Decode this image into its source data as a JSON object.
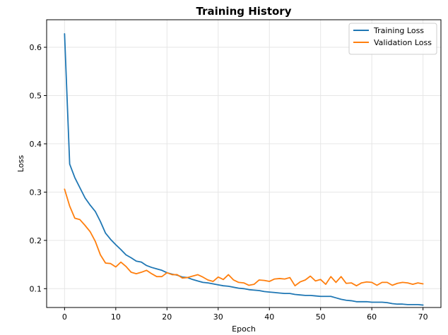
{
  "chart_data": {
    "type": "line",
    "title": "Training History",
    "xlabel": "Epoch",
    "ylabel": "Loss",
    "xlim": [
      -3.5,
      73.5
    ],
    "ylim": [
      0.061,
      0.657
    ],
    "xticks": [
      0,
      10,
      20,
      30,
      40,
      50,
      60,
      70
    ],
    "yticks": [
      0.1,
      0.2,
      0.3,
      0.4,
      0.5,
      0.6
    ],
    "xtick_labels": [
      "0",
      "10",
      "20",
      "30",
      "40",
      "50",
      "60",
      "70"
    ],
    "ytick_labels": [
      "0.1",
      "0.2",
      "0.3",
      "0.4",
      "0.5",
      "0.6"
    ],
    "grid": true,
    "legend_position": "top-right",
    "x": [
      0,
      1,
      2,
      3,
      4,
      5,
      6,
      7,
      8,
      9,
      10,
      11,
      12,
      13,
      14,
      15,
      16,
      17,
      18,
      19,
      20,
      21,
      22,
      23,
      24,
      25,
      26,
      27,
      28,
      29,
      30,
      31,
      32,
      33,
      34,
      35,
      36,
      37,
      38,
      39,
      40,
      41,
      42,
      43,
      44,
      45,
      46,
      47,
      48,
      49,
      50,
      51,
      52,
      53,
      54,
      55,
      56,
      57,
      58,
      59,
      60,
      61,
      62,
      63,
      64,
      65,
      66,
      67,
      68,
      69,
      70
    ],
    "series": [
      {
        "name": "Training Loss",
        "color": "#1f77b4",
        "values": [
          0.628,
          0.358,
          0.33,
          0.309,
          0.288,
          0.273,
          0.26,
          0.239,
          0.215,
          0.202,
          0.191,
          0.181,
          0.17,
          0.164,
          0.157,
          0.155,
          0.148,
          0.144,
          0.141,
          0.138,
          0.133,
          0.13,
          0.128,
          0.124,
          0.123,
          0.119,
          0.116,
          0.113,
          0.112,
          0.11,
          0.108,
          0.106,
          0.105,
          0.103,
          0.101,
          0.1,
          0.098,
          0.097,
          0.096,
          0.094,
          0.093,
          0.092,
          0.091,
          0.09,
          0.09,
          0.088,
          0.087,
          0.086,
          0.086,
          0.085,
          0.084,
          0.084,
          0.084,
          0.081,
          0.078,
          0.076,
          0.075,
          0.073,
          0.073,
          0.073,
          0.072,
          0.072,
          0.072,
          0.071,
          0.069,
          0.068,
          0.068,
          0.067,
          0.067,
          0.067,
          0.066
        ]
      },
      {
        "name": "Validation Loss",
        "color": "#ff7f0e",
        "values": [
          0.306,
          0.271,
          0.246,
          0.243,
          0.231,
          0.218,
          0.198,
          0.17,
          0.153,
          0.152,
          0.145,
          0.155,
          0.146,
          0.134,
          0.131,
          0.134,
          0.138,
          0.131,
          0.125,
          0.125,
          0.133,
          0.129,
          0.129,
          0.122,
          0.123,
          0.126,
          0.129,
          0.124,
          0.118,
          0.115,
          0.124,
          0.119,
          0.129,
          0.118,
          0.113,
          0.112,
          0.107,
          0.109,
          0.118,
          0.117,
          0.115,
          0.12,
          0.121,
          0.12,
          0.123,
          0.106,
          0.114,
          0.118,
          0.126,
          0.116,
          0.119,
          0.109,
          0.125,
          0.113,
          0.125,
          0.111,
          0.112,
          0.106,
          0.112,
          0.114,
          0.113,
          0.107,
          0.113,
          0.113,
          0.107,
          0.111,
          0.113,
          0.112,
          0.109,
          0.112,
          0.11
        ]
      }
    ]
  }
}
